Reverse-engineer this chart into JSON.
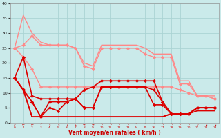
{
  "background_color": "#caeaea",
  "grid_color": "#aad4d4",
  "xlabel": "Vent moyen/en rafales ( km/h )",
  "xlim_min": -0.5,
  "xlim_max": 23.5,
  "ylim_min": 0,
  "ylim_max": 40,
  "yticks": [
    0,
    5,
    10,
    15,
    20,
    25,
    30,
    35,
    40
  ],
  "xtick_nums": [
    "0",
    "1",
    "2",
    "3",
    "4",
    "5",
    "6",
    "7",
    "8",
    "9",
    "10",
    "11",
    "12",
    "13",
    "14",
    "15",
    "16",
    "17",
    "18",
    "19",
    "20",
    "21",
    "22",
    "23"
  ],
  "wind_arrows": [
    "↙",
    "←",
    "←",
    "↗",
    "↘",
    "↘",
    "↓",
    "↓",
    "→",
    "→",
    "↖",
    "↖",
    "↖",
    "↖",
    "↖",
    "↖",
    "↖",
    "↖",
    "↖",
    "↖",
    "↖",
    "↙",
    "↘",
    "↘"
  ],
  "lines": [
    {
      "y": [
        25,
        36,
        30,
        27,
        26,
        26,
        26,
        25,
        20,
        19,
        26,
        26,
        26,
        26,
        26,
        25,
        23,
        23,
        23,
        14,
        14,
        9,
        9,
        9
      ],
      "color": "#ff8888",
      "marker": null,
      "lw": 1.0
    },
    {
      "y": [
        25,
        26,
        29,
        26,
        26,
        26,
        26,
        25,
        19,
        18,
        25,
        25,
        25,
        25,
        25,
        23,
        22,
        22,
        22,
        13,
        13,
        9,
        9,
        8
      ],
      "color": "#ff8888",
      "marker": "D",
      "lw": 1.0
    },
    {
      "y": [
        25,
        22,
        18,
        12,
        12,
        12,
        12,
        12,
        12,
        12,
        12,
        12,
        12,
        12,
        12,
        12,
        12,
        12,
        12,
        11,
        10,
        9,
        9,
        8
      ],
      "color": "#ff8888",
      "marker": "D",
      "lw": 1.0
    },
    {
      "y": [
        15,
        22,
        9,
        8,
        8,
        8,
        8,
        8,
        11,
        12,
        14,
        14,
        14,
        14,
        14,
        14,
        14,
        7,
        3,
        3,
        3,
        5,
        5,
        5
      ],
      "color": "#dd0000",
      "marker": "D",
      "lw": 1.2
    },
    {
      "y": [
        15,
        11,
        7,
        2,
        7,
        7,
        7,
        8,
        5,
        5,
        12,
        12,
        12,
        12,
        12,
        12,
        11,
        7,
        3,
        3,
        3,
        5,
        5,
        5
      ],
      "color": "#dd0000",
      "marker": "D",
      "lw": 1.2
    },
    {
      "y": [
        15,
        11,
        7,
        2,
        5,
        4,
        7,
        8,
        5,
        5,
        12,
        12,
        12,
        12,
        12,
        12,
        6,
        6,
        3,
        3,
        3,
        5,
        5,
        5
      ],
      "color": "#dd0000",
      "marker": "D",
      "lw": 1.2
    },
    {
      "y": [
        15,
        11,
        2,
        2,
        2,
        2,
        2,
        2,
        2,
        2,
        2,
        2,
        2,
        2,
        2,
        2,
        2,
        2,
        3,
        3,
        3,
        5,
        5,
        5
      ],
      "color": "#dd0000",
      "marker": null,
      "lw": 1.2
    },
    {
      "y": [
        15,
        11,
        2,
        2,
        2,
        2,
        2,
        2,
        2,
        2,
        2,
        2,
        2,
        2,
        2,
        2,
        2,
        2,
        3,
        3,
        3,
        4,
        4,
        4
      ],
      "color": "#dd0000",
      "marker": null,
      "lw": 1.2
    }
  ]
}
